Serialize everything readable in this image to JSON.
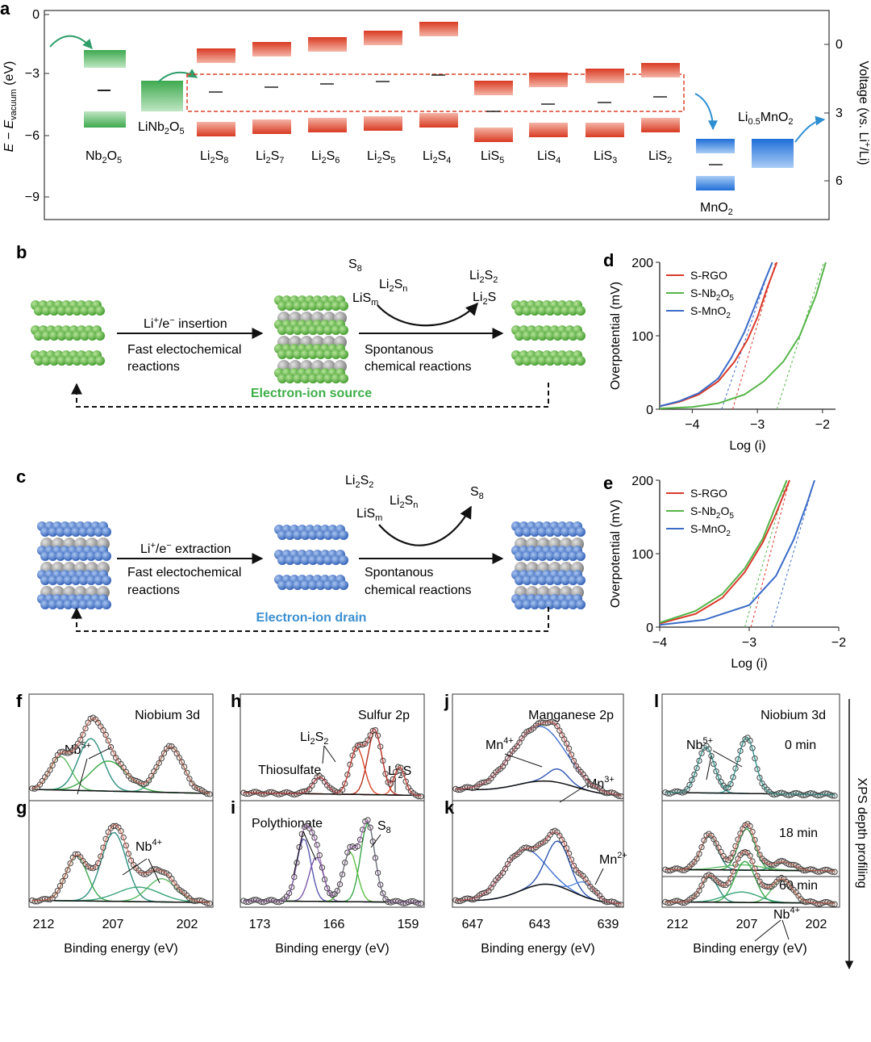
{
  "panel_labels": {
    "a": "a",
    "b": "b",
    "c": "c",
    "d": "d",
    "e": "e",
    "f": "f",
    "g": "g",
    "h": "h",
    "i": "i",
    "j": "j",
    "k": "k",
    "l": "l"
  },
  "panel_a": {
    "y_label": "E − E",
    "y_label_sub": "vacuum",
    "y_label_unit": " (eV)",
    "y_ticks": [
      "0",
      "−3",
      "−6",
      "−9"
    ],
    "right_label": "Voltage (vs. Li",
    "right_label_sup": "+",
    "right_label_end": "/Li)",
    "right_ticks": [
      "0",
      "3",
      "6"
    ],
    "materials": [
      {
        "name": "Nb",
        "sub": "2",
        "name2": "O",
        "sub2": "5"
      },
      {
        "name": "LiNb",
        "sub": "2",
        "name2": "O",
        "sub2": "5"
      },
      {
        "name": "Li",
        "sub": "2",
        "name2": "S",
        "sub2": "8"
      },
      {
        "name": "Li",
        "sub": "2",
        "name2": "S",
        "sub2": "7"
      },
      {
        "name": "Li",
        "sub": "2",
        "name2": "S",
        "sub2": "6"
      },
      {
        "name": "Li",
        "sub": "2",
        "name2": "S",
        "sub2": "5"
      },
      {
        "name": "Li",
        "sub": "2",
        "name2": "S",
        "sub2": "4"
      },
      {
        "name": "LiS",
        "sub": "5",
        "name2": "",
        "sub2": ""
      },
      {
        "name": "LiS",
        "sub": "4",
        "name2": "",
        "sub2": ""
      },
      {
        "name": "LiS",
        "sub": "3",
        "name2": "",
        "sub2": ""
      },
      {
        "name": "LiS",
        "sub": "2",
        "name2": "",
        "sub2": ""
      },
      {
        "name": "MnO",
        "sub": "2",
        "name2": "",
        "sub2": ""
      },
      {
        "name": "Li",
        "sub": "0.5",
        "name2": "MnO",
        "sub2": "2"
      }
    ]
  },
  "panel_b": {
    "arrow1_top": "Li",
    "arrow1_top_sup": "+",
    "arrow1_top_mid": "/e",
    "arrow1_top_sup2": "−",
    "arrow1_top_end": " insertion",
    "arrow1_bottom_1": "Fast electochemical",
    "arrow1_bottom_2": "reactions",
    "species_left_1": "S",
    "species_left_1_sub": "8",
    "species_left_2": "LiS",
    "species_left_2_sub": "m",
    "species_mid": "Li",
    "species_mid_sub": "2",
    "species_mid_2": "S",
    "species_mid_2_sub": "n",
    "species_right_1": "Li",
    "species_right_1_sub": "2",
    "species_right_1b": "S",
    "species_right_1b_sub": "2",
    "species_right_2": "Li",
    "species_right_2_sub": "2",
    "species_right_2b": "S",
    "arrow2_bottom_1": "Spontanous",
    "arrow2_bottom_2": "chemical reactions",
    "cycle_label": "Electron-ion source"
  },
  "panel_c": {
    "arrow1_top": "Li",
    "arrow1_top_sup": "+",
    "arrow1_top_mid": "/e",
    "arrow1_top_sup2": "−",
    "arrow1_top_end": " extraction",
    "arrow1_bottom_1": "Fast electochemical",
    "arrow1_bottom_2": "reactions",
    "species_top": "Li",
    "species_top_sub": "2",
    "species_top_b": "S",
    "species_top_b_sub": "2",
    "species_left": "LiS",
    "species_left_sub": "m",
    "species_mid": "Li",
    "species_mid_sub": "2",
    "species_mid_b": "S",
    "species_mid_b_sub": "n",
    "species_right": "S",
    "species_right_sub": "8",
    "arrow2_bottom_1": "Spontanous",
    "arrow2_bottom_2": "chemical reactions",
    "cycle_label": "Electron-ion drain"
  },
  "legend": {
    "s_rgo": "S-RGO",
    "s_nb_a": "S-Nb",
    "s_nb_sub1": "2",
    "s_nb_b": "O",
    "s_nb_sub2": "5",
    "s_mn_a": "S-MnO",
    "s_mn_sub": "2"
  },
  "colors": {
    "rgo": "#d93a2b",
    "nb": "#55b548",
    "mn": "#3b6cc8",
    "green_sphere": "#6cc04a",
    "blue_sphere": "#4f7fd0",
    "source_text": "#3fae49",
    "drain_text": "#3b8fd1"
  },
  "chart_data": [
    {
      "type": "line",
      "panel": "d",
      "title": "",
      "xlabel": "Log (i)",
      "ylabel": "Overpotential (mV)",
      "xlim": [
        -4.5,
        -1.8
      ],
      "ylim": [
        0,
        200
      ],
      "xticks": [
        -4,
        -3,
        -2
      ],
      "yticks": [
        0,
        100,
        200
      ],
      "series": [
        {
          "name": "S-RGO",
          "x": [
            -4.5,
            -4.2,
            -3.9,
            -3.6,
            -3.35,
            -3.15,
            -3.0,
            -2.85,
            -2.7
          ],
          "y": [
            4,
            10,
            20,
            38,
            65,
            95,
            125,
            165,
            200
          ]
        },
        {
          "name": "S-Nb2O5",
          "x": [
            -4.5,
            -4.0,
            -3.6,
            -3.2,
            -2.9,
            -2.6,
            -2.35,
            -2.1,
            -1.95
          ],
          "y": [
            1,
            3,
            8,
            20,
            38,
            65,
            100,
            155,
            200
          ]
        },
        {
          "name": "S-MnO2",
          "x": [
            -4.5,
            -4.2,
            -3.9,
            -3.6,
            -3.4,
            -3.2,
            -3.05,
            -2.9,
            -2.77
          ],
          "y": [
            4,
            11,
            22,
            42,
            70,
            105,
            138,
            172,
            200
          ]
        }
      ],
      "tafel_fits": [
        {
          "name": "S-RGO",
          "x": [
            -3.38,
            -2.72
          ],
          "y": [
            0,
            200
          ]
        },
        {
          "name": "S-Nb2O5",
          "x": [
            -2.7,
            -1.98
          ],
          "y": [
            0,
            200
          ]
        },
        {
          "name": "S-MnO2",
          "x": [
            -3.55,
            -2.78
          ],
          "y": [
            0,
            200
          ]
        }
      ]
    },
    {
      "type": "line",
      "panel": "e",
      "title": "",
      "xlabel": "Log (i)",
      "ylabel": "Overpotential (mV)",
      "xlim": [
        -4,
        -2
      ],
      "ylim": [
        0,
        200
      ],
      "xticks": [
        -4,
        -3,
        -2
      ],
      "yticks": [
        0,
        100,
        200
      ],
      "series": [
        {
          "name": "S-RGO",
          "x": [
            -4.0,
            -3.6,
            -3.3,
            -3.05,
            -2.85,
            -2.7,
            -2.55
          ],
          "y": [
            5,
            18,
            40,
            75,
            115,
            155,
            200
          ]
        },
        {
          "name": "S-Nb2O5",
          "x": [
            -4.0,
            -3.6,
            -3.3,
            -3.05,
            -2.85,
            -2.72,
            -2.58
          ],
          "y": [
            6,
            22,
            45,
            80,
            120,
            160,
            200
          ]
        },
        {
          "name": "S-MnO2",
          "x": [
            -4.0,
            -3.5,
            -3.0,
            -2.7,
            -2.5,
            -2.35,
            -2.27
          ],
          "y": [
            3,
            10,
            30,
            70,
            120,
            170,
            200
          ]
        }
      ],
      "tafel_fits": [
        {
          "name": "S-RGO",
          "x": [
            -2.98,
            -2.55
          ],
          "y": [
            0,
            200
          ]
        },
        {
          "name": "S-Nb2O5",
          "x": [
            -3.05,
            -2.58
          ],
          "y": [
            0,
            200
          ]
        },
        {
          "name": "S-MnO2",
          "x": [
            -2.75,
            -2.27
          ],
          "y": [
            0,
            200
          ]
        }
      ]
    }
  ],
  "xps": {
    "xlabel": "Binding energy (eV)",
    "f": {
      "title": "Niobium 3d",
      "label": "Nb",
      "label_sup": "5+"
    },
    "g": {
      "label": "Nb",
      "label_sup": "4+"
    },
    "h": {
      "title": "Sulfur 2p",
      "label1": "Li",
      "label1_sub": "2",
      "label1b": "S",
      "label1b_sub": "2",
      "label2": "Li",
      "label2_sub": "2",
      "label2b": "S",
      "label3": "Thiosulfate"
    },
    "i": {
      "label1": "Polythionate",
      "label2": "S",
      "label2_sub": "8"
    },
    "j": {
      "title": "Manganese 2p",
      "label1": "Mn",
      "label1_sup": "4+",
      "label2": "Mn",
      "label2_sup": "3+"
    },
    "k": {
      "label": "Mn",
      "label_sup": "2+"
    },
    "l": {
      "title": "Niobium 3d",
      "label1": "Nb",
      "label1_sup": "5+",
      "t0": "0 min",
      "t1": "18 min",
      "t2": "60 min",
      "label2": "Nb",
      "label2_sup": "4+",
      "side": "XPS depth profiling"
    },
    "ticks_nb": [
      "212",
      "207",
      "202"
    ],
    "ticks_s": [
      "173",
      "166",
      "159"
    ],
    "ticks_mn": [
      "647",
      "643",
      "639"
    ]
  }
}
